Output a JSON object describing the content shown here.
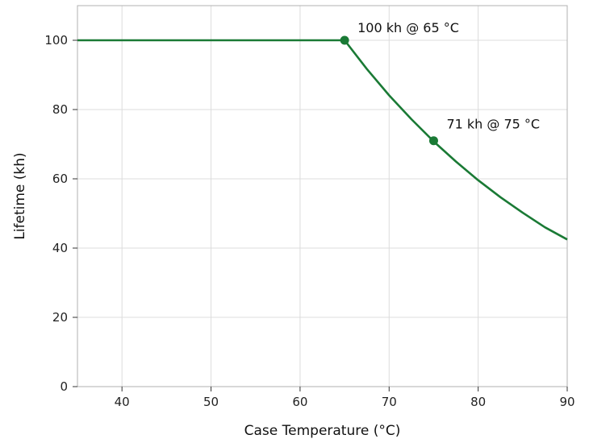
{
  "chart_data": {
    "type": "line",
    "title": "",
    "xlabel": "Case Temperature (°C)",
    "ylabel": "Lifetime (kh)",
    "xlim": [
      35,
      90
    ],
    "ylim": [
      0,
      110
    ],
    "xticks": [
      40,
      50,
      60,
      70,
      80,
      90
    ],
    "yticks": [
      0,
      20,
      40,
      60,
      80,
      100
    ],
    "grid": true,
    "series": [
      {
        "color": "#1a7a35",
        "x": [
          35,
          40,
          45,
          50,
          55,
          60,
          65,
          67.5,
          70,
          72.5,
          75,
          77.5,
          80,
          82.5,
          85,
          87.5,
          90
        ],
        "y": [
          100,
          100,
          100,
          100,
          100,
          100,
          100,
          91.7,
          84.1,
          77.2,
          70.8,
          65.0,
          59.6,
          54.7,
          50.2,
          46.0,
          42.5
        ]
      }
    ],
    "annotations": [
      {
        "x": 65,
        "y": 100,
        "text": "100 kh @ 65 °C"
      },
      {
        "x": 75,
        "y": 71,
        "text": "71 kh @ 75 °C"
      }
    ]
  }
}
